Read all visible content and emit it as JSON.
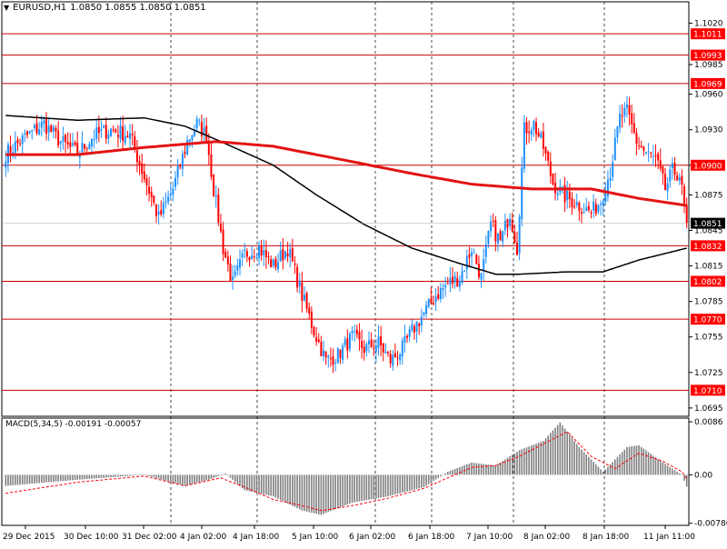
{
  "header": {
    "symbol": "EURUSD,H1",
    "ohlc": "1.0850 1.0855 1.0850 1.0851"
  },
  "macd_header": {
    "label": "MACD(5,34,5)",
    "values": "-0.00191 -0.00057"
  },
  "colors": {
    "bull": "#1e90ff",
    "bear": "#ff0000",
    "ma_fast": "#e31313",
    "ma_slow": "#000000",
    "level_line": "#cc0000",
    "level_box": "#ff0000",
    "histogram": "#808080",
    "signal": "#ff0000",
    "grid": "#000000"
  },
  "chart_data": [
    {
      "type": "candlestick",
      "title": "EURUSD,H1",
      "ylim": [
        1.0688,
        1.1038
      ],
      "y_ticks": [
        "1.1020",
        "1.0985",
        "1.0960",
        "1.0930",
        "1.0900",
        "1.0875",
        "1.0845",
        "1.0815",
        "1.0785",
        "1.0755",
        "1.0725",
        "1.0695"
      ],
      "x_ticks": [
        "29 Dec 2015",
        "30 Dec 10:00",
        "31 Dec 02:00",
        "4 Jan 02:00",
        "4 Jan 18:00",
        "5 Jan 10:00",
        "6 Jan 02:00",
        "6 Jan 18:00",
        "7 Jan 10:00",
        "8 Jan 02:00",
        "8 Jan 18:00",
        "11 Jan 11:00"
      ],
      "grid": "vertical dashed",
      "levels": [
        "1.1011",
        "1.0993",
        "1.0969",
        "1.0900",
        "1.0832",
        "1.0802",
        "1.0770",
        "1.0710"
      ],
      "current_price": "1.0851",
      "series": [
        {
          "kind": "price",
          "anchors": [
            [
              0,
              1.091
            ],
            [
              9,
              1.0925
            ],
            [
              16,
              1.0935
            ],
            [
              23,
              1.092
            ],
            [
              30,
              1.091
            ],
            [
              37,
              1.0925
            ],
            [
              44,
              1.093
            ],
            [
              52,
              1.0925
            ],
            [
              58,
              1.089
            ],
            [
              64,
              1.0855
            ],
            [
              70,
              1.088
            ],
            [
              76,
              1.092
            ],
            [
              80,
              1.0935
            ],
            [
              84,
              1.0925
            ],
            [
              87,
              1.088
            ],
            [
              91,
              1.083
            ],
            [
              95,
              1.08
            ],
            [
              100,
              1.0825
            ],
            [
              106,
              1.083
            ],
            [
              112,
              1.0815
            ],
            [
              118,
              1.083
            ],
            [
              124,
              1.079
            ],
            [
              129,
              1.076
            ],
            [
              134,
              1.0735
            ],
            [
              139,
              1.074
            ],
            [
              145,
              1.0755
            ],
            [
              150,
              1.0745
            ],
            [
              156,
              1.075
            ],
            [
              161,
              1.0735
            ],
            [
              166,
              1.0745
            ],
            [
              170,
              1.076
            ],
            [
              175,
              1.0775
            ],
            [
              180,
              1.079
            ],
            [
              185,
              1.08
            ],
            [
              190,
              1.0805
            ],
            [
              195,
              1.083
            ],
            [
              199,
              1.0805
            ],
            [
              203,
              1.085
            ],
            [
              207,
              1.0835
            ],
            [
              211,
              1.086
            ],
            [
              214,
              1.083
            ],
            [
              217,
              1.093
            ],
            [
              221,
              1.0935
            ],
            [
              225,
              1.0915
            ],
            [
              229,
              1.0885
            ],
            [
              233,
              1.0875
            ],
            [
              237,
              1.087
            ],
            [
              241,
              1.0865
            ],
            [
              245,
              1.086
            ],
            [
              249,
              1.087
            ],
            [
              253,
              1.0895
            ],
            [
              257,
              1.094
            ],
            [
              260,
              1.0945
            ],
            [
              264,
              1.092
            ],
            [
              268,
              1.091
            ],
            [
              272,
              1.0905
            ],
            [
              276,
              1.088
            ],
            [
              279,
              1.0895
            ],
            [
              282,
              1.0892
            ],
            [
              285,
              1.0851
            ]
          ]
        },
        {
          "kind": "ma_fast",
          "name": "",
          "anchors": [
            [
              0,
              1.0909
            ],
            [
              30,
              1.0909
            ],
            [
              58,
              1.0915
            ],
            [
              88,
              1.092
            ],
            [
              112,
              1.0916
            ],
            [
              140,
              1.0905
            ],
            [
              170,
              1.0893
            ],
            [
              195,
              1.0884
            ],
            [
              220,
              1.088
            ],
            [
              245,
              1.088
            ],
            [
              265,
              1.0872
            ],
            [
              285,
              1.0866
            ]
          ]
        },
        {
          "kind": "ma_slow",
          "name": "",
          "anchors": [
            [
              0,
              1.0942
            ],
            [
              30,
              1.0938
            ],
            [
              58,
              1.094
            ],
            [
              75,
              1.0933
            ],
            [
              90,
              1.092
            ],
            [
              112,
              1.09
            ],
            [
              130,
              1.0875
            ],
            [
              150,
              1.085
            ],
            [
              170,
              1.083
            ],
            [
              190,
              1.0817
            ],
            [
              205,
              1.0808
            ],
            [
              215,
              1.0808
            ],
            [
              235,
              1.081
            ],
            [
              250,
              1.081
            ],
            [
              265,
              1.082
            ],
            [
              285,
              1.083
            ]
          ]
        }
      ]
    },
    {
      "type": "bar",
      "title": "MACD(5,34,5)",
      "ylim": [
        -0.0082,
        0.0092
      ],
      "y_ticks": [
        "0.0086",
        "0.00",
        "-0.00786"
      ],
      "series": [
        {
          "kind": "histogram",
          "anchors": [
            [
              0,
              -0.0018
            ],
            [
              30,
              -0.0008
            ],
            [
              58,
              0.0
            ],
            [
              75,
              -0.0018
            ],
            [
              85,
              -0.0008
            ],
            [
              92,
              0.0002
            ],
            [
              100,
              -0.0025
            ],
            [
              112,
              -0.0035
            ],
            [
              124,
              -0.0058
            ],
            [
              132,
              -0.0065
            ],
            [
              145,
              -0.0045
            ],
            [
              160,
              -0.0035
            ],
            [
              175,
              -0.002
            ],
            [
              185,
              0.0005
            ],
            [
              195,
              0.002
            ],
            [
              205,
              0.0015
            ],
            [
              215,
              0.004
            ],
            [
              225,
              0.0055
            ],
            [
              232,
              0.0085
            ],
            [
              240,
              0.0045
            ],
            [
              250,
              0.0005
            ],
            [
              260,
              0.0045
            ],
            [
              265,
              0.0048
            ],
            [
              275,
              0.002
            ],
            [
              283,
              0.0
            ],
            [
              285,
              -0.0019
            ]
          ]
        },
        {
          "kind": "signal",
          "anchors": [
            [
              0,
              -0.003
            ],
            [
              30,
              -0.0012
            ],
            [
              58,
              -0.0002
            ],
            [
              75,
              -0.0018
            ],
            [
              90,
              -0.0005
            ],
            [
              100,
              -0.002
            ],
            [
              112,
              -0.004
            ],
            [
              124,
              -0.005
            ],
            [
              132,
              -0.0058
            ],
            [
              145,
              -0.005
            ],
            [
              160,
              -0.0038
            ],
            [
              175,
              -0.0022
            ],
            [
              185,
              -0.0005
            ],
            [
              195,
              0.0012
            ],
            [
              205,
              0.0015
            ],
            [
              215,
              0.003
            ],
            [
              225,
              0.005
            ],
            [
              235,
              0.007
            ],
            [
              245,
              0.003
            ],
            [
              255,
              0.001
            ],
            [
              265,
              0.0035
            ],
            [
              275,
              0.0022
            ],
            [
              283,
              0.0005
            ],
            [
              285,
              -0.0006
            ]
          ]
        }
      ]
    }
  ]
}
